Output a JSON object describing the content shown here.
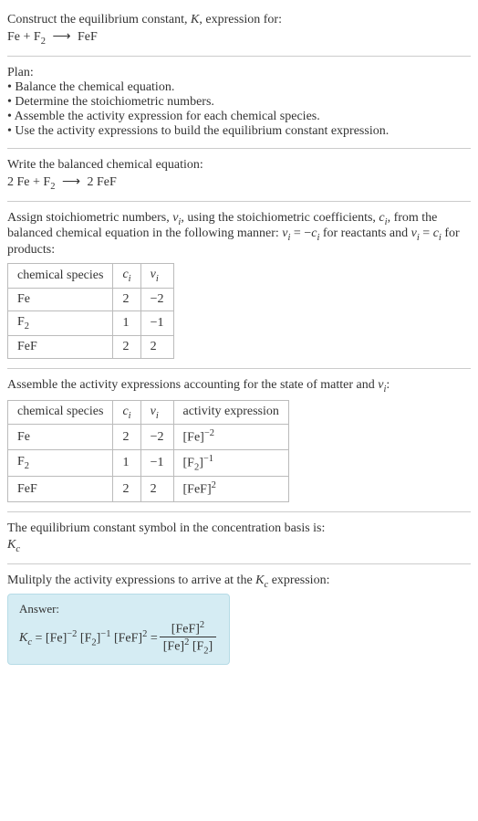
{
  "intro": {
    "line1": "Construct the equilibrium constant, K, expression for:",
    "equation_lhs": "Fe + F",
    "equation_rhs": "FeF",
    "arrow": "⟶"
  },
  "plan": {
    "title": "Plan:",
    "items": [
      "• Balance the chemical equation.",
      "• Determine the stoichiometric numbers.",
      "• Assemble the activity expression for each chemical species.",
      "• Use the activity expressions to build the equilibrium constant expression."
    ]
  },
  "balanced": {
    "title": "Write the balanced chemical equation:",
    "eq_lhs": "2 Fe + F",
    "eq_rhs": "2 FeF",
    "arrow": "⟶"
  },
  "stoich": {
    "intro_a": "Assign stoichiometric numbers, ν",
    "intro_b": ", using the stoichiometric coefficients, c",
    "intro_c": ", from the balanced chemical equation in the following manner: ν",
    "intro_d": " = –c",
    "intro_e": " for reactants and ν",
    "intro_f": " = c",
    "intro_g": " for products:",
    "sub_i": "i",
    "headers": [
      "chemical species",
      "cᵢ",
      "νᵢ"
    ],
    "rows": [
      [
        "Fe",
        "2",
        "−2"
      ],
      [
        "F₂",
        "1",
        "−1"
      ],
      [
        "FeF",
        "2",
        "2"
      ]
    ]
  },
  "activity": {
    "intro": "Assemble the activity expressions accounting for the state of matter and νᵢ:",
    "headers": [
      "chemical species",
      "cᵢ",
      "νᵢ",
      "activity expression"
    ],
    "rows": [
      {
        "sp": "Fe",
        "c": "2",
        "v": "−2",
        "expr_base": "[Fe]",
        "expr_sup": "−2"
      },
      {
        "sp": "F₂",
        "c": "1",
        "v": "−1",
        "expr_base": "[F₂]",
        "expr_sup": "−1"
      },
      {
        "sp": "FeF",
        "c": "2",
        "v": "2",
        "expr_base": "[FeF]",
        "expr_sup": "2"
      }
    ]
  },
  "symbol": {
    "line": "The equilibrium constant symbol in the concentration basis is:",
    "k": "K",
    "sub": "c"
  },
  "multiply": {
    "line_a": "Mulitply the activity expressions to arrive at the K",
    "line_b": " expression:",
    "sub": "c"
  },
  "answer": {
    "label": "Answer:",
    "k": "K",
    "ksub": "c",
    "eq": " = ",
    "t1": "[Fe]",
    "s1": "−2",
    "t2": "[F₂]",
    "s2": "−1",
    "t3": "[FeF]",
    "s3": "2",
    "eq2": " = ",
    "num": "[FeF]",
    "numsup": "2",
    "den1": "[Fe]",
    "den1sup": "2",
    "den2": "[F₂]"
  }
}
